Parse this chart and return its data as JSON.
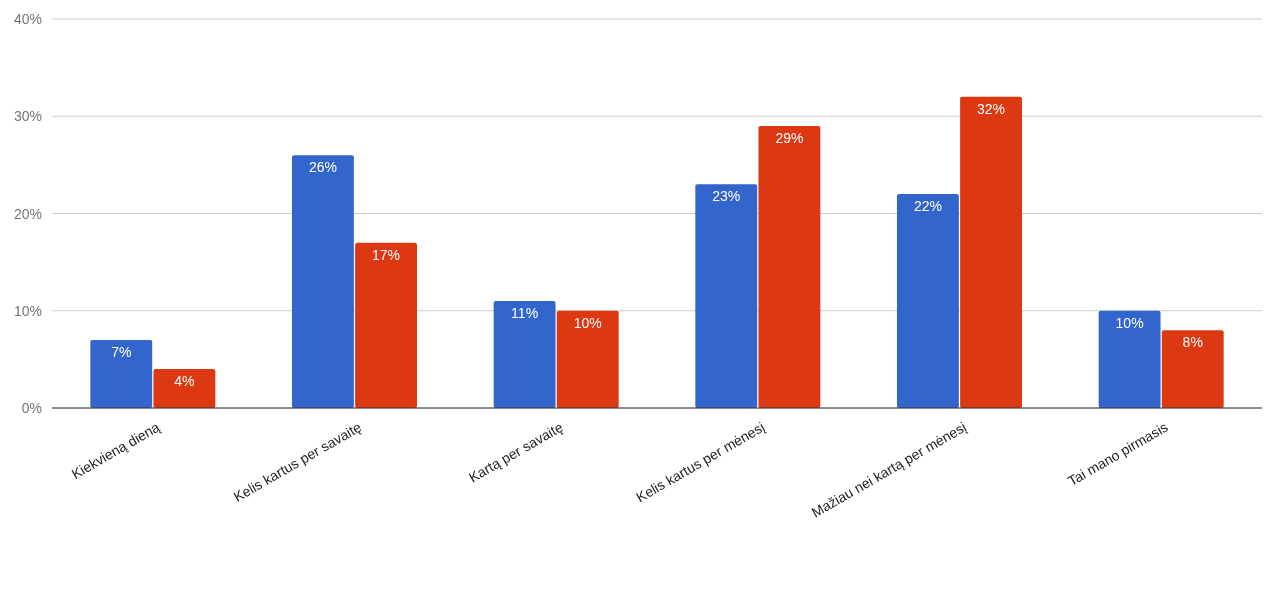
{
  "chart_data": {
    "type": "bar",
    "categories": [
      "Kiekvieną dieną",
      "Kelis kartus per savaitę",
      "Kartą per savaitę",
      "Kelis kartus per mėnesį",
      "Mažiau nei kartą per mėnesį",
      "Tai mano pirmasis"
    ],
    "series": [
      {
        "color": "#3366cc",
        "values": [
          7,
          26,
          11,
          23,
          22,
          10
        ],
        "value_labels": [
          "7%",
          "26%",
          "11%",
          "23%",
          "22%",
          "10%"
        ]
      },
      {
        "color": "#dc3912",
        "values": [
          4,
          17,
          10,
          29,
          32,
          8
        ],
        "value_labels": [
          "4%",
          "17%",
          "10%",
          "29%",
          "32%",
          "8%"
        ]
      }
    ],
    "ylim": [
      0,
      40
    ],
    "yticks": [
      {
        "value": 0,
        "label": "0%"
      },
      {
        "value": 10,
        "label": "10%"
      },
      {
        "value": 20,
        "label": "20%"
      },
      {
        "value": 30,
        "label": "30%"
      },
      {
        "value": 40,
        "label": "40%"
      }
    ],
    "grid": "y"
  }
}
